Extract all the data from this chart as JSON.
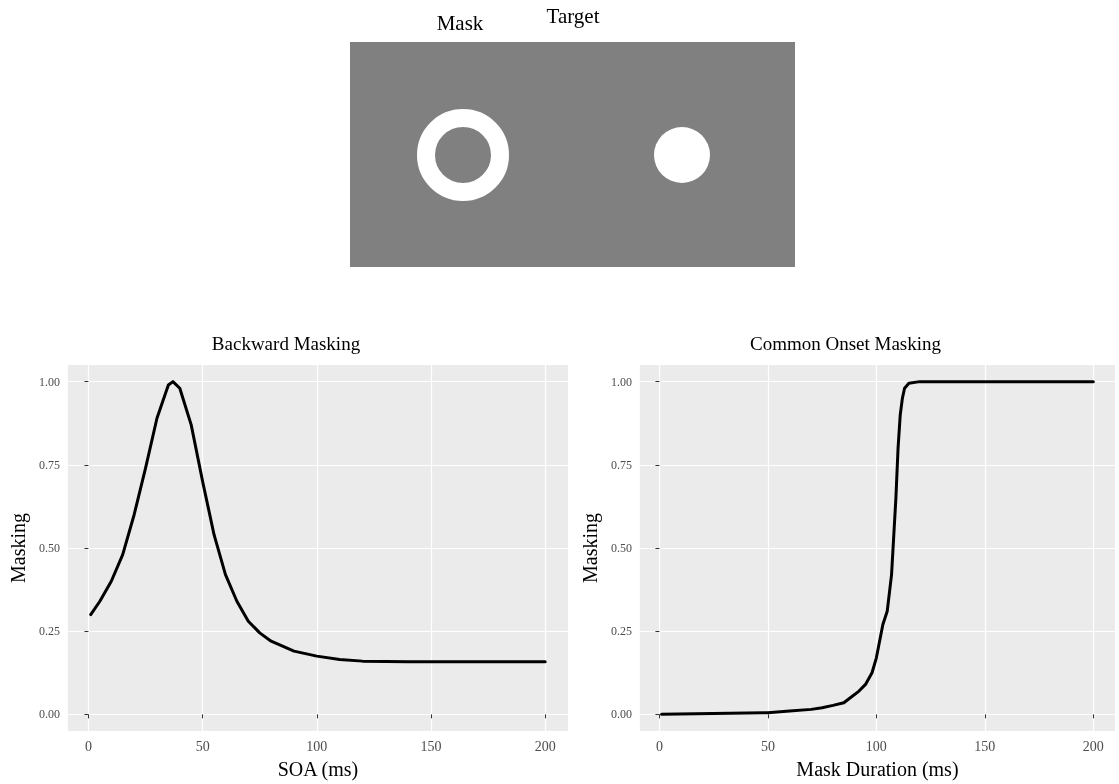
{
  "chart_data": [
    {
      "type": "other",
      "annotations": [
        "Mask",
        "Target"
      ]
    },
    {
      "type": "line",
      "title": "Backward Masking",
      "xlabel": "SOA (ms)",
      "ylabel": "Masking",
      "color": "#000000",
      "grid": true,
      "x": [
        1,
        5,
        10,
        15,
        20,
        25,
        30,
        35,
        37,
        40,
        45,
        50,
        55,
        60,
        65,
        70,
        75,
        80,
        90,
        100,
        110,
        120,
        140,
        160,
        200
      ],
      "values": [
        0.3,
        0.34,
        0.4,
        0.48,
        0.6,
        0.74,
        0.89,
        0.99,
        1.0,
        0.98,
        0.87,
        0.7,
        0.54,
        0.42,
        0.34,
        0.28,
        0.245,
        0.22,
        0.19,
        0.175,
        0.165,
        0.16,
        0.158,
        0.158,
        0.158
      ],
      "xlim": [
        -9,
        210
      ],
      "xticks": [
        0,
        50,
        100,
        150,
        200
      ],
      "ylim": [
        -0.05,
        1.05
      ],
      "yticks": [
        {
          "value": 0,
          "label": "0.00"
        },
        {
          "value": 0.25,
          "label": "0.25"
        },
        {
          "value": 0.5,
          "label": "0.50"
        },
        {
          "value": 0.75,
          "label": "0.75"
        },
        {
          "value": 1,
          "label": "1.00"
        }
      ]
    },
    {
      "type": "line",
      "title": "Common Onset Masking",
      "xlabel": "Mask Duration (ms)",
      "ylabel": "Masking",
      "color": "#000000",
      "grid": true,
      "x": [
        1,
        50,
        60,
        70,
        75,
        80,
        85,
        88,
        92,
        95,
        98,
        100,
        103,
        105,
        107,
        109,
        110,
        111,
        112,
        113,
        115,
        120,
        200
      ],
      "values": [
        0.0,
        0.005,
        0.01,
        0.015,
        0.02,
        0.027,
        0.035,
        0.05,
        0.07,
        0.09,
        0.125,
        0.17,
        0.27,
        0.31,
        0.42,
        0.65,
        0.8,
        0.9,
        0.95,
        0.98,
        0.995,
        1.0,
        1.0
      ],
      "xlim": [
        -9,
        210
      ],
      "xticks": [
        0,
        50,
        100,
        150,
        200
      ],
      "ylim": [
        -0.05,
        1.05
      ],
      "yticks": [
        {
          "value": 0,
          "label": "0.00"
        },
        {
          "value": 0.25,
          "label": "0.25"
        },
        {
          "value": 0.5,
          "label": "0.50"
        },
        {
          "value": 0.75,
          "label": "0.75"
        },
        {
          "value": 1,
          "label": "1.00"
        }
      ]
    }
  ]
}
